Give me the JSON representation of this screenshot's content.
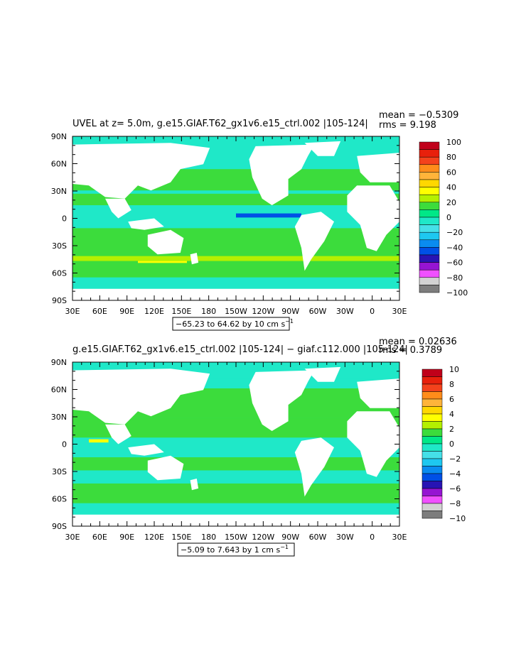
{
  "chart_data": [
    {
      "type": "heatmap",
      "title": "UVEL at z=    5.0m, g.e15.GIAF.T62_gx1v6.e15_ctrl.002  |105-124|",
      "stats": {
        "mean": "mean = −0.5309",
        "rms": "rms =  9.198"
      },
      "range_note": "−65.23 to 64.62 by 10 cm s",
      "range_sup": "−1",
      "x_ticks": [
        "30E",
        "60E",
        "90E",
        "120E",
        "150E",
        "180",
        "150W",
        "120W",
        "90W",
        "60W",
        "30W",
        "0",
        "30E"
      ],
      "y_ticks": [
        "90N",
        "60N",
        "30N",
        "0",
        "30S",
        "60S",
        "90S"
      ],
      "colorbar": {
        "levels": [
          "100",
          "80",
          "60",
          "40",
          "20",
          "0",
          "−20",
          "−40",
          "−60",
          "−80",
          "−100"
        ],
        "colors": [
          "#c0001a",
          "#e8200c",
          "#f4421c",
          "#ff8c1a",
          "#ffb43a",
          "#ffd700",
          "#ffff00",
          "#b4f000",
          "#3cdc3c",
          "#00e887",
          "#1fe8c8",
          "#45e0e8",
          "#1ec8f0",
          "#0a8cf0",
          "#0050e6",
          "#2814b4",
          "#9614d2",
          "#f050ff",
          "#d2d2d2",
          "#7d7d7d"
        ]
      }
    },
    {
      "type": "heatmap",
      "title": "g.e15.GIAF.T62_gx1v6.e15_ctrl.002  |105-124|  −  giaf.c112.000  |105-124|",
      "stats": {
        "mean": "mean = 0.02636",
        "rms": "rms =  0.3789"
      },
      "range_note": "−5.09 to 7.643 by 1 cm s",
      "range_sup": "−1",
      "x_ticks": [
        "30E",
        "60E",
        "90E",
        "120E",
        "150E",
        "180",
        "150W",
        "120W",
        "90W",
        "60W",
        "30W",
        "0",
        "30E"
      ],
      "y_ticks": [
        "90N",
        "60N",
        "30N",
        "0",
        "30S",
        "60S",
        "90S"
      ],
      "colorbar": {
        "levels": [
          "10",
          "8",
          "6",
          "4",
          "2",
          "0",
          "−2",
          "−4",
          "−6",
          "−8",
          "−10"
        ],
        "colors": [
          "#c0001a",
          "#e8200c",
          "#f4421c",
          "#ff8c1a",
          "#ffb43a",
          "#ffd700",
          "#ffff00",
          "#b4f000",
          "#3cdc3c",
          "#00e887",
          "#1fe8c8",
          "#45e0e8",
          "#1ec8f0",
          "#0a8cf0",
          "#0050e6",
          "#2814b4",
          "#9614d2",
          "#f050ff",
          "#d2d2d2",
          "#7d7d7d"
        ]
      }
    }
  ]
}
